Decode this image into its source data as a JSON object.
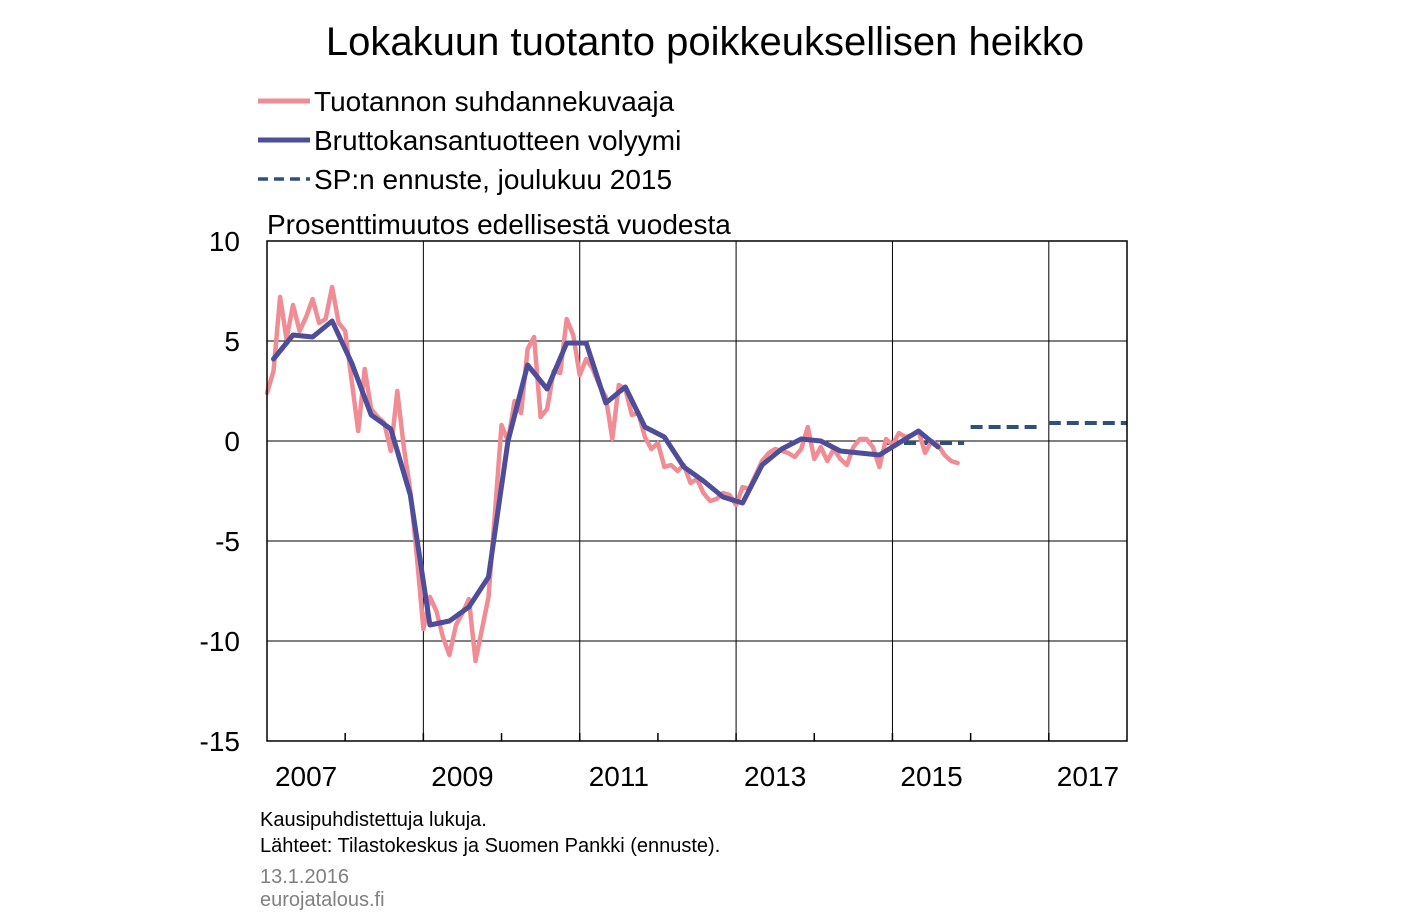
{
  "chart_data": {
    "type": "line",
    "title": "Lokakuun tuotanto poikkeuksellisen heikko",
    "ylabel": "Prosenttimuutos edellisestä vuodesta",
    "xlabel": "",
    "xlim": [
      2007,
      2018
    ],
    "ylim": [
      -15,
      10
    ],
    "yticks": [
      10,
      5,
      0,
      -5,
      -10,
      -15
    ],
    "ytick_labels": [
      "10",
      "5",
      "0",
      "-5",
      "-10",
      "-15"
    ],
    "xtick_labels": [
      "2007",
      "2009",
      "2011",
      "2013",
      "2015",
      "2017"
    ],
    "xtick_positions": [
      2007,
      2009,
      2011,
      2013,
      2015,
      2017
    ],
    "grid": true,
    "legend_position": "top-left",
    "series": [
      {
        "name": "Tuotannon suhdannekuvaaja",
        "color": "#f08c94",
        "style": "solid",
        "x": [
          2007.0,
          2007.083,
          2007.167,
          2007.25,
          2007.333,
          2007.417,
          2007.5,
          2007.583,
          2007.667,
          2007.75,
          2007.833,
          2007.917,
          2008.0,
          2008.083,
          2008.167,
          2008.25,
          2008.333,
          2008.417,
          2008.5,
          2008.583,
          2008.667,
          2008.75,
          2008.833,
          2008.917,
          2009.0,
          2009.083,
          2009.167,
          2009.25,
          2009.333,
          2009.417,
          2009.5,
          2009.583,
          2009.667,
          2009.75,
          2009.833,
          2009.917,
          2010.0,
          2010.083,
          2010.167,
          2010.25,
          2010.333,
          2010.417,
          2010.5,
          2010.583,
          2010.667,
          2010.75,
          2010.833,
          2010.917,
          2011.0,
          2011.083,
          2011.167,
          2011.25,
          2011.333,
          2011.417,
          2011.5,
          2011.583,
          2011.667,
          2011.75,
          2011.833,
          2011.917,
          2012.0,
          2012.083,
          2012.167,
          2012.25,
          2012.333,
          2012.417,
          2012.5,
          2012.583,
          2012.667,
          2012.75,
          2012.833,
          2012.917,
          2013.0,
          2013.083,
          2013.167,
          2013.25,
          2013.333,
          2013.417,
          2013.5,
          2013.583,
          2013.667,
          2013.75,
          2013.833,
          2013.917,
          2014.0,
          2014.083,
          2014.167,
          2014.25,
          2014.333,
          2014.417,
          2014.5,
          2014.583,
          2014.667,
          2014.75,
          2014.833,
          2014.917,
          2015.0,
          2015.083,
          2015.167,
          2015.25,
          2015.333,
          2015.417,
          2015.5,
          2015.583,
          2015.667,
          2015.75,
          2015.833
        ],
        "values": [
          2.4,
          3.5,
          7.2,
          5.1,
          6.8,
          5.5,
          6.2,
          7.1,
          5.9,
          6.1,
          7.7,
          5.9,
          5.5,
          3.0,
          0.5,
          3.6,
          1.6,
          1.2,
          0.9,
          -0.5,
          2.5,
          -0.3,
          -2.5,
          -5.8,
          -9.4,
          -7.8,
          -8.5,
          -9.8,
          -10.7,
          -9.2,
          -8.6,
          -7.9,
          -11.0,
          -9.4,
          -7.8,
          -3.5,
          0.8,
          0.0,
          2.0,
          1.4,
          4.6,
          5.2,
          1.2,
          1.6,
          3.5,
          3.4,
          6.1,
          5.3,
          3.3,
          4.1,
          3.6,
          2.8,
          2.2,
          0.1,
          2.8,
          2.6,
          1.3,
          1.4,
          0.2,
          -0.4,
          -0.1,
          -1.3,
          -1.2,
          -1.5,
          -1.2,
          -2.1,
          -1.9,
          -2.6,
          -3.0,
          -2.9,
          -2.6,
          -2.7,
          -3.2,
          -2.3,
          -2.4,
          -1.7,
          -1.0,
          -0.6,
          -0.4,
          -0.5,
          -0.6,
          -0.8,
          -0.4,
          0.7,
          -0.9,
          -0.3,
          -1.0,
          -0.4,
          -0.9,
          -1.2,
          -0.3,
          0.1,
          0.1,
          -0.3,
          -1.3,
          0.1,
          -0.2,
          0.4,
          0.2,
          0.3,
          0.5,
          -0.6,
          0.0,
          -0.2,
          -0.7,
          -1.0,
          -1.1
        ]
      },
      {
        "name": "Bruttokansantuotteen volyymi",
        "color": "#4d4d9a",
        "style": "solid",
        "x": [
          2007.083,
          2007.333,
          2007.583,
          2007.833,
          2008.083,
          2008.333,
          2008.583,
          2008.833,
          2009.083,
          2009.333,
          2009.583,
          2009.833,
          2010.083,
          2010.333,
          2010.583,
          2010.833,
          2011.083,
          2011.333,
          2011.583,
          2011.833,
          2012.083,
          2012.333,
          2012.583,
          2012.833,
          2013.083,
          2013.333,
          2013.583,
          2013.833,
          2014.083,
          2014.333,
          2014.583,
          2014.833,
          2015.083,
          2015.333,
          2015.583
        ],
        "values": [
          4.1,
          5.3,
          5.2,
          6.0,
          3.9,
          1.3,
          0.6,
          -2.7,
          -9.2,
          -9.0,
          -8.3,
          -6.8,
          0.0,
          3.8,
          2.6,
          4.9,
          4.9,
          1.9,
          2.7,
          0.7,
          0.2,
          -1.3,
          -2.0,
          -2.8,
          -3.1,
          -1.2,
          -0.4,
          0.1,
          0.0,
          -0.5,
          -0.6,
          -0.7,
          -0.1,
          0.5,
          -0.3
        ]
      },
      {
        "name": "SP:n ennuste, joulukuu 2015",
        "color": "#2f4f7f",
        "style": "dashed",
        "segments": [
          {
            "x": [
              2014.917,
              2015.917
            ],
            "values": [
              -0.1,
              -0.1
            ]
          },
          {
            "x": [
              2016.0,
              2016.917
            ],
            "values": [
              0.7,
              0.7
            ]
          },
          {
            "x": [
              2017.0,
              2018.0
            ],
            "values": [
              0.9,
              0.9
            ]
          }
        ]
      }
    ]
  },
  "notes": {
    "line1": "Kausipuhdistettuja  lukuja.",
    "line2": "Lähteet: Tilastokeskus ja Suomen Pankki (ennuste)."
  },
  "meta": {
    "date": "13.1.2016",
    "site": "eurojatalous.fi"
  }
}
